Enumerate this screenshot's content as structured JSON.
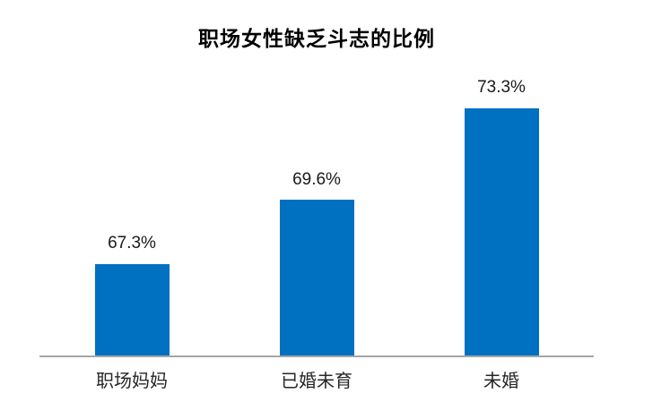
{
  "chart_data": {
    "type": "bar",
    "title": "职场女性缺乏斗志的比例",
    "categories": [
      "职场妈妈",
      "已婚未育",
      "未婚"
    ],
    "values": [
      67.3,
      69.6,
      73.3
    ],
    "value_labels": [
      "67.3%",
      "69.6%",
      "73.3%"
    ],
    "xlabel": "",
    "ylabel": "",
    "ylim": [
      64,
      74
    ],
    "grid": false,
    "legend": false,
    "y_axis_visible": false,
    "bar_color": "#0070C0",
    "axis_line_color": "#A6A6A6",
    "title_color": "#000000",
    "label_color": "#1a1a1a"
  }
}
